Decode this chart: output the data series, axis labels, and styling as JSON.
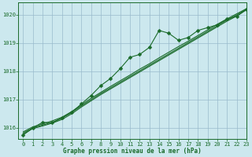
{
  "bg_color": "#cce8ee",
  "grid_color": "#99bbcc",
  "line_color": "#1a6b2a",
  "title": "Graphe pression niveau de la mer (hPa)",
  "title_color": "#1a6b2a",
  "xlim": [
    -0.5,
    23
  ],
  "ylim": [
    1015.6,
    1020.45
  ],
  "yticks": [
    1016,
    1017,
    1018,
    1019,
    1020
  ],
  "xticks": [
    0,
    1,
    2,
    3,
    4,
    5,
    6,
    7,
    8,
    9,
    10,
    11,
    12,
    13,
    14,
    15,
    16,
    17,
    18,
    19,
    20,
    21,
    22,
    23
  ],
  "series_linear1": {
    "x": [
      0,
      1,
      2,
      3,
      4,
      5,
      6,
      7,
      8,
      9,
      10,
      11,
      12,
      13,
      14,
      15,
      16,
      17,
      18,
      19,
      20,
      21,
      22,
      23
    ],
    "y": [
      1015.82,
      1016.0,
      1016.1,
      1016.2,
      1016.35,
      1016.55,
      1016.78,
      1017.0,
      1017.22,
      1017.42,
      1017.62,
      1017.82,
      1018.02,
      1018.22,
      1018.42,
      1018.62,
      1018.82,
      1019.02,
      1019.22,
      1019.42,
      1019.62,
      1019.82,
      1020.0,
      1020.2
    ]
  },
  "series_linear2": {
    "x": [
      0,
      1,
      2,
      3,
      4,
      5,
      6,
      7,
      8,
      9,
      10,
      11,
      12,
      13,
      14,
      15,
      16,
      17,
      18,
      19,
      20,
      21,
      22,
      23
    ],
    "y": [
      1015.86,
      1016.04,
      1016.14,
      1016.25,
      1016.38,
      1016.58,
      1016.82,
      1017.05,
      1017.26,
      1017.47,
      1017.67,
      1017.87,
      1018.08,
      1018.27,
      1018.48,
      1018.68,
      1018.88,
      1019.07,
      1019.27,
      1019.47,
      1019.67,
      1019.86,
      1020.04,
      1020.22
    ]
  },
  "series_linear3": {
    "x": [
      0,
      1,
      2,
      3,
      4,
      5,
      6,
      7,
      8,
      9,
      10,
      11,
      12,
      13,
      14,
      15,
      16,
      17,
      18,
      19,
      20,
      21,
      22,
      23
    ],
    "y": [
      1015.78,
      1015.98,
      1016.07,
      1016.17,
      1016.3,
      1016.5,
      1016.74,
      1016.96,
      1017.18,
      1017.38,
      1017.58,
      1017.78,
      1017.98,
      1018.18,
      1018.38,
      1018.58,
      1018.78,
      1018.98,
      1019.18,
      1019.38,
      1019.58,
      1019.78,
      1019.96,
      1020.18
    ]
  },
  "series_markers": {
    "x": [
      0,
      1,
      2,
      3,
      4,
      5,
      6,
      7,
      8,
      9,
      10,
      11,
      12,
      13,
      14,
      15,
      16,
      17,
      18,
      19,
      20,
      21,
      22,
      23
    ],
    "y": [
      1015.75,
      1016.0,
      1016.2,
      1016.18,
      1016.35,
      1016.55,
      1016.85,
      1017.15,
      1017.5,
      1017.75,
      1018.1,
      1018.5,
      1018.6,
      1018.85,
      1019.45,
      1019.35,
      1019.1,
      1019.2,
      1019.45,
      1019.55,
      1019.65,
      1019.85,
      1019.95,
      1020.2
    ]
  }
}
